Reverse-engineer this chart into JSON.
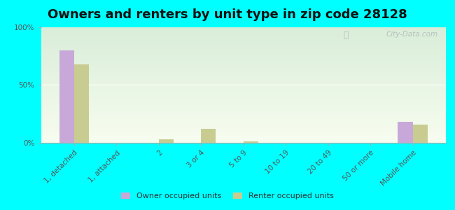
{
  "title": "Owners and renters by unit type in zip code 28128",
  "categories": [
    "1, detached",
    "1, attached",
    "2",
    "3 or 4",
    "5 to 9",
    "10 to 19",
    "20 to 49",
    "50 or more",
    "Mobile home"
  ],
  "owner_values": [
    80,
    0,
    0,
    0,
    0,
    0,
    0,
    0,
    18
  ],
  "renter_values": [
    68,
    0,
    3,
    12,
    1,
    0,
    0,
    0,
    16
  ],
  "owner_color": "#c8a8d8",
  "renter_color": "#c8cc90",
  "background_color": "#00ffff",
  "ylim": [
    0,
    100
  ],
  "yticks": [
    0,
    50,
    100
  ],
  "ytick_labels": [
    "0%",
    "50%",
    "100%"
  ],
  "watermark": "City-Data.com",
  "legend_owner": "Owner occupied units",
  "legend_renter": "Renter occupied units",
  "bar_width": 0.35,
  "title_fontsize": 13,
  "tick_fontsize": 7.5
}
